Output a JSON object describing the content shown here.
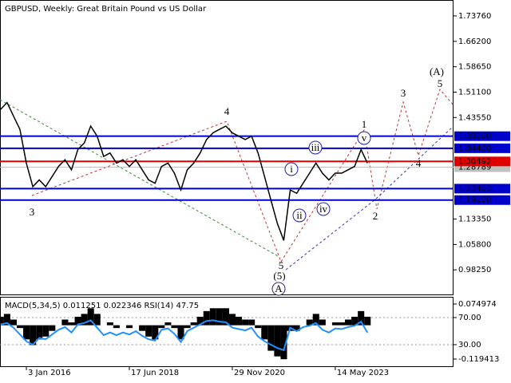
{
  "chart_data": [
    {
      "type": "line",
      "title": "GBPUSD, Weekly:  Great Britain Pound vs US Dollar",
      "color": "#000000",
      "categories": [
        null,
        null,
        null,
        null,
        "3 Jan 2016",
        null,
        null,
        null,
        null,
        null,
        null,
        null,
        null,
        null,
        null,
        null,
        null,
        null,
        null,
        null,
        "17 Jun 2018",
        null,
        null,
        null,
        null,
        null,
        null,
        null,
        null,
        null,
        null,
        null,
        null,
        null,
        null,
        null,
        "29 Nov 2020",
        null,
        null,
        null,
        null,
        null,
        null,
        null,
        null,
        null,
        null,
        null,
        null,
        null,
        null,
        null,
        "14 May 2023",
        null,
        null,
        null,
        null,
        null
      ],
      "values": [
        1.46,
        1.48,
        1.44,
        1.4,
        1.3,
        1.23,
        1.25,
        1.23,
        1.26,
        1.29,
        1.31,
        1.28,
        1.34,
        1.36,
        1.41,
        1.38,
        1.32,
        1.33,
        1.3,
        1.31,
        1.29,
        1.31,
        1.28,
        1.25,
        1.24,
        1.29,
        1.3,
        1.27,
        1.22,
        1.28,
        1.3,
        1.33,
        1.37,
        1.39,
        1.4,
        1.41,
        1.39,
        1.38,
        1.37,
        1.38,
        1.33,
        1.26,
        1.19,
        1.12,
        1.07,
        1.22,
        1.21,
        1.24,
        1.27,
        1.3,
        1.27,
        1.25,
        1.27,
        1.27,
        1.28,
        1.29,
        1.34,
        1.3
      ],
      "ylim": [
        0.907,
        1.785
      ],
      "yticks": [
        {
          "value": 1.7376,
          "label": "1.73760"
        },
        {
          "value": 1.662,
          "label": "1.66200"
        },
        {
          "value": 1.5865,
          "label": "1.58650"
        },
        {
          "value": 1.511,
          "label": "1.51100"
        },
        {
          "value": 1.4355,
          "label": "1.43550"
        },
        {
          "value": 1.1335,
          "label": "1.13350"
        },
        {
          "value": 1.058,
          "label": "1.05800"
        },
        {
          "value": 0.9825,
          "label": "0.98250"
        }
      ],
      "levels": [
        {
          "value": 1.28789,
          "label": "1.28789",
          "color": "#c0c0c0"
        },
        {
          "value": 1.38,
          "label": "1.38000",
          "color": "#0000cd"
        },
        {
          "value": 1.344,
          "label": "1.34400",
          "color": "#0000cd"
        },
        {
          "value": 1.30492,
          "label": "1.30492",
          "color": "#e00000"
        },
        {
          "value": 1.22403,
          "label": "1.22403",
          "color": "#0000cd"
        },
        {
          "value": 1.19,
          "label": "1.19000",
          "color": "#0000cd"
        }
      ],
      "annotations": [
        "1",
        "2",
        "3",
        "4",
        "5",
        "(A)",
        "i",
        "ii",
        "iii",
        "iv",
        "v",
        "3",
        "4",
        "5",
        "(5)",
        "A"
      ]
    },
    {
      "type": "bar",
      "title": "MACD(5,34,5) 0.011251 0.022346 RSI(14) 47.75",
      "color": "#000000",
      "values": [
        0.03,
        0.04,
        0.02,
        -0.01,
        -0.05,
        -0.07,
        -0.05,
        -0.04,
        -0.02,
        0.0,
        0.02,
        0.01,
        0.03,
        0.04,
        0.06,
        0.04,
        0.0,
        0.01,
        -0.01,
        0.0,
        -0.01,
        0.0,
        -0.02,
        -0.04,
        -0.05,
        -0.01,
        0.01,
        -0.01,
        -0.05,
        -0.01,
        0.01,
        0.03,
        0.05,
        0.06,
        0.06,
        0.06,
        0.04,
        0.03,
        0.02,
        0.02,
        -0.01,
        -0.05,
        -0.09,
        -0.11,
        -0.12,
        -0.02,
        -0.02,
        0.0,
        0.02,
        0.04,
        0.02,
        0.0,
        0.01,
        0.01,
        0.02,
        0.03,
        0.05,
        0.03
      ],
      "ylim": [
        -0.1476,
        0.1003
      ],
      "yticks": [
        {
          "value": 0.074974,
          "label": "0.074974"
        },
        {
          "value": -0.119413,
          "label": "-0.119413"
        }
      ],
      "y2lim": [
        -3,
        100.6
      ],
      "y2ticks": [
        {
          "value": 70,
          "label": "70.00"
        },
        {
          "value": 30,
          "label": "30.00"
        }
      ],
      "series": [
        {
          "color": "#1e90ff",
          "axis": "y2",
          "values": [
            60,
            62,
            55,
            45,
            35,
            30,
            40,
            38,
            45,
            52,
            56,
            48,
            60,
            62,
            66,
            55,
            44,
            48,
            44,
            48,
            45,
            50,
            43,
            38,
            36,
            52,
            54,
            46,
            34,
            50,
            55,
            60,
            65,
            66,
            64,
            63,
            55,
            53,
            51,
            55,
            42,
            35,
            30,
            25,
            22,
            55,
            50,
            56,
            58,
            62,
            52,
            48,
            54,
            53,
            56,
            58,
            64,
            48
          ]
        }
      ]
    }
  ]
}
